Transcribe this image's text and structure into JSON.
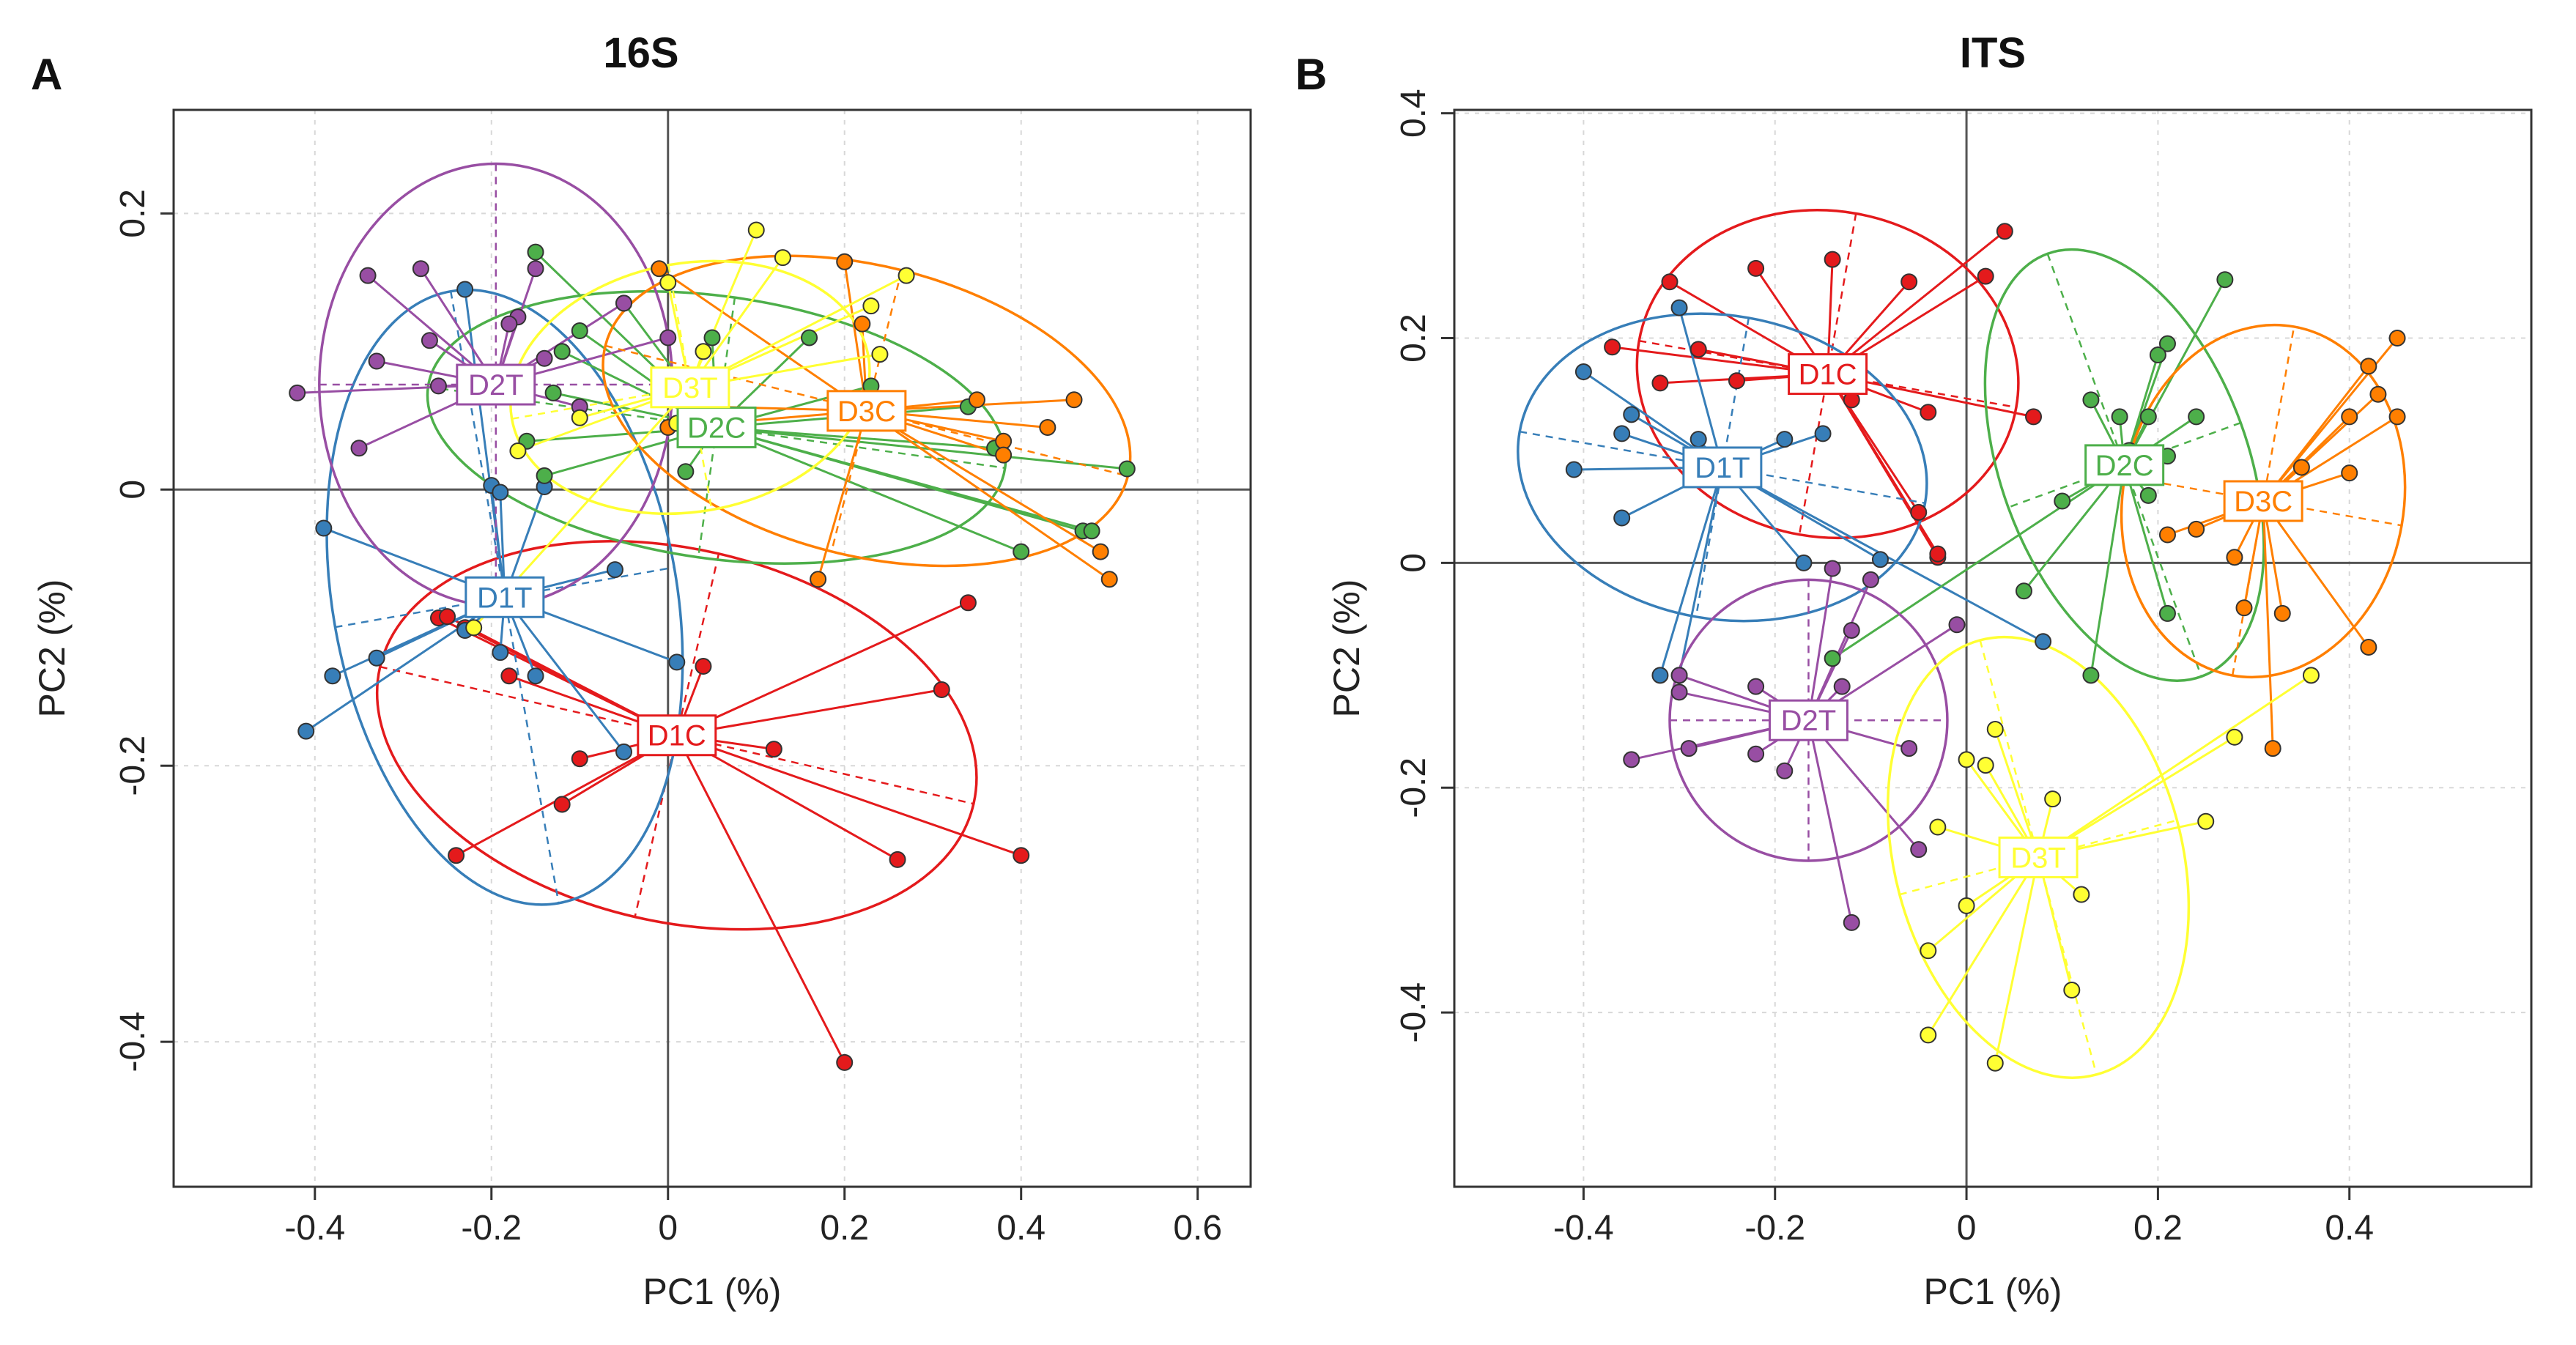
{
  "chart_data": [
    {
      "type": "scatter",
      "panel_label": "A",
      "title": "16S",
      "xlabel": "PC1 (%)",
      "ylabel": "PC2 (%)",
      "xlim": [
        -0.56,
        0.66
      ],
      "ylim": [
        -0.505,
        0.275
      ],
      "xticks": [
        -0.4,
        -0.2,
        0,
        0.2,
        0.4,
        0.6
      ],
      "xtick_labels": [
        "-0.4",
        "-0.2",
        "0",
        "0.2",
        "0.4",
        "0.6"
      ],
      "yticks": [
        -0.4,
        -0.2,
        0,
        0.2
      ],
      "ytick_labels": [
        "-0.4",
        "-0.2",
        "0",
        "0.2"
      ],
      "grid": true,
      "groups": [
        {
          "name": "D1C",
          "color": "#e41a1c",
          "centroid": [
            0.01,
            -0.178
          ],
          "ellipse": {
            "rx": 0.345,
            "ry": 0.135,
            "angle": -13
          },
          "points": [
            [
              -0.26,
              -0.093
            ],
            [
              -0.25,
              -0.092
            ],
            [
              -0.23,
              -0.1
            ],
            [
              -0.18,
              -0.135
            ],
            [
              -0.1,
              -0.195
            ],
            [
              -0.12,
              -0.228
            ],
            [
              -0.24,
              -0.265
            ],
            [
              0.04,
              -0.128
            ],
            [
              0.12,
              -0.188
            ],
            [
              0.2,
              -0.415
            ],
            [
              0.26,
              -0.268
            ],
            [
              0.31,
              -0.145
            ],
            [
              0.34,
              -0.082
            ],
            [
              0.4,
              -0.265
            ]
          ]
        },
        {
          "name": "D1T",
          "color": "#377eb8",
          "centroid": [
            -0.185,
            -0.078
          ],
          "ellipse": {
            "rx": 0.195,
            "ry": 0.225,
            "angle": 10
          },
          "points": [
            [
              -0.39,
              -0.028
            ],
            [
              -0.41,
              -0.175
            ],
            [
              -0.38,
              -0.135
            ],
            [
              -0.33,
              -0.122
            ],
            [
              -0.23,
              -0.102
            ],
            [
              -0.19,
              -0.118
            ],
            [
              -0.2,
              0.003
            ],
            [
              -0.19,
              -0.002
            ],
            [
              -0.15,
              -0.135
            ],
            [
              -0.14,
              0.002
            ],
            [
              -0.06,
              -0.058
            ],
            [
              -0.05,
              -0.19
            ],
            [
              0.01,
              -0.125
            ],
            [
              -0.23,
              0.145
            ]
          ]
        },
        {
          "name": "D2C",
          "color": "#4daf4a",
          "centroid": [
            0.055,
            0.045
          ],
          "ellipse": {
            "rx": 0.33,
            "ry": 0.095,
            "angle": -8
          },
          "points": [
            [
              -0.15,
              0.172
            ],
            [
              -0.12,
              0.1
            ],
            [
              -0.1,
              0.115
            ],
            [
              -0.13,
              0.07
            ],
            [
              -0.14,
              0.01
            ],
            [
              -0.16,
              0.035
            ],
            [
              -0.05,
              0.135
            ],
            [
              0.02,
              0.013
            ],
            [
              0.05,
              0.11
            ],
            [
              0.16,
              0.11
            ],
            [
              0.23,
              0.075
            ],
            [
              0.34,
              0.06
            ],
            [
              0.37,
              0.03
            ],
            [
              0.4,
              -0.045
            ],
            [
              0.47,
              -0.03
            ],
            [
              0.48,
              -0.03
            ],
            [
              0.52,
              0.015
            ]
          ]
        },
        {
          "name": "D2T",
          "color": "#984ea3",
          "centroid": [
            -0.195,
            0.076
          ],
          "ellipse": {
            "rx": 0.2,
            "ry": 0.16,
            "angle": 0
          },
          "points": [
            [
              -0.34,
              0.155
            ],
            [
              -0.28,
              0.16
            ],
            [
              -0.42,
              0.07
            ],
            [
              -0.33,
              0.093
            ],
            [
              -0.35,
              0.03
            ],
            [
              -0.26,
              0.075
            ],
            [
              -0.27,
              0.108
            ],
            [
              -0.17,
              0.125
            ],
            [
              -0.15,
              0.16
            ],
            [
              -0.14,
              0.095
            ],
            [
              -0.1,
              0.06
            ],
            [
              -0.05,
              0.135
            ],
            [
              0.0,
              0.11
            ],
            [
              -0.18,
              0.12
            ]
          ]
        },
        {
          "name": "D3C",
          "color": "#ff7f00",
          "centroid": [
            0.225,
            0.057
          ],
          "ellipse": {
            "rx": 0.305,
            "ry": 0.105,
            "angle": -14
          },
          "points": [
            [
              -0.01,
              0.16
            ],
            [
              0.2,
              0.165
            ],
            [
              0.22,
              0.12
            ],
            [
              0.26,
              0.06
            ],
            [
              0.35,
              0.065
            ],
            [
              0.38,
              0.035
            ],
            [
              0.38,
              0.025
            ],
            [
              0.43,
              0.045
            ],
            [
              0.46,
              0.065
            ],
            [
              0.49,
              -0.045
            ],
            [
              0.5,
              -0.065
            ],
            [
              0.17,
              -0.065
            ],
            [
              0.0,
              0.045
            ],
            [
              0.05,
              0.06
            ]
          ]
        },
        {
          "name": "D3T",
          "color": "#ffff33",
          "centroid": [
            0.025,
            0.074
          ],
          "ellipse": {
            "rx": 0.205,
            "ry": 0.09,
            "angle": 10
          },
          "points": [
            [
              0.1,
              0.188
            ],
            [
              0.13,
              0.168
            ],
            [
              0.27,
              0.155
            ],
            [
              0.23,
              0.133
            ],
            [
              0.24,
              0.098
            ],
            [
              0.04,
              0.1
            ],
            [
              0.02,
              0.082
            ],
            [
              -0.1,
              0.052
            ],
            [
              -0.17,
              0.028
            ],
            [
              0.03,
              0.05
            ],
            [
              0.01,
              0.048
            ],
            [
              0.0,
              0.15
            ],
            [
              -0.22,
              -0.1
            ]
          ]
        }
      ]
    },
    {
      "type": "scatter",
      "panel_label": "B",
      "title": "ITS",
      "xlabel": "PC1 (%)",
      "ylabel": "PC2 (%)",
      "xlim": [
        -0.535,
        0.59
      ],
      "ylim": [
        -0.555,
        0.403
      ],
      "xticks": [
        -0.4,
        -0.2,
        0,
        0.2,
        0.4
      ],
      "xtick_labels": [
        "-0.4",
        "-0.2",
        "0",
        "0.2",
        "0.4"
      ],
      "yticks": [
        -0.4,
        -0.2,
        0,
        0.2,
        0.4
      ],
      "ytick_labels": [
        "-0.4",
        "-0.2",
        "0",
        "0.2",
        "0.4"
      ],
      "grid": true,
      "groups": [
        {
          "name": "D1C",
          "color": "#e41a1c",
          "centroid": [
            -0.145,
            0.168
          ],
          "ellipse": {
            "rx": 0.2,
            "ry": 0.145,
            "angle": -10
          },
          "points": [
            [
              -0.31,
              0.25
            ],
            [
              -0.22,
              0.262
            ],
            [
              -0.14,
              0.27
            ],
            [
              -0.06,
              0.25
            ],
            [
              0.02,
              0.255
            ],
            [
              0.04,
              0.295
            ],
            [
              -0.37,
              0.192
            ],
            [
              -0.28,
              0.19
            ],
            [
              -0.24,
              0.162
            ],
            [
              -0.12,
              0.145
            ],
            [
              -0.04,
              0.134
            ],
            [
              -0.03,
              0.005
            ],
            [
              -0.03,
              0.008
            ],
            [
              -0.05,
              0.045
            ],
            [
              0.07,
              0.13
            ],
            [
              -0.32,
              0.16
            ]
          ]
        },
        {
          "name": "D1T",
          "color": "#377eb8",
          "centroid": [
            -0.255,
            0.085
          ],
          "ellipse": {
            "rx": 0.215,
            "ry": 0.135,
            "angle": -10
          },
          "points": [
            [
              -0.4,
              0.17
            ],
            [
              -0.35,
              0.132
            ],
            [
              -0.36,
              0.115
            ],
            [
              -0.28,
              0.11
            ],
            [
              -0.3,
              0.227
            ],
            [
              -0.41,
              0.083
            ],
            [
              -0.36,
              0.04
            ],
            [
              -0.3,
              -0.1
            ],
            [
              -0.19,
              0.11
            ],
            [
              -0.15,
              0.115
            ],
            [
              -0.09,
              0.003
            ],
            [
              -0.17,
              0.0
            ],
            [
              0.08,
              -0.07
            ],
            [
              -0.32,
              -0.1
            ]
          ]
        },
        {
          "name": "D2C",
          "color": "#4daf4a",
          "centroid": [
            0.165,
            0.087
          ],
          "ellipse": {
            "rx": 0.235,
            "ry": 0.11,
            "angle": -70
          },
          "points": [
            [
              0.27,
              0.252
            ],
            [
              0.21,
              0.195
            ],
            [
              0.2,
              0.185
            ],
            [
              0.13,
              0.145
            ],
            [
              0.16,
              0.13
            ],
            [
              0.19,
              0.13
            ],
            [
              0.24,
              0.13
            ],
            [
              0.17,
              0.1
            ],
            [
              0.21,
              0.095
            ],
            [
              0.1,
              0.055
            ],
            [
              0.19,
              0.06
            ],
            [
              0.21,
              -0.045
            ],
            [
              0.13,
              -0.1
            ],
            [
              0.06,
              -0.025
            ],
            [
              -0.14,
              -0.085
            ]
          ]
        },
        {
          "name": "D2T",
          "color": "#984ea3",
          "centroid": [
            -0.165,
            -0.14
          ],
          "ellipse": {
            "rx": 0.145,
            "ry": 0.125,
            "angle": 0
          },
          "points": [
            [
              -0.14,
              -0.005
            ],
            [
              -0.12,
              -0.06
            ],
            [
              -0.1,
              -0.015
            ],
            [
              -0.3,
              -0.1
            ],
            [
              -0.22,
              -0.11
            ],
            [
              -0.13,
              -0.11
            ],
            [
              -0.35,
              -0.175
            ],
            [
              -0.29,
              -0.165
            ],
            [
              -0.22,
              -0.17
            ],
            [
              -0.19,
              -0.185
            ],
            [
              -0.06,
              -0.165
            ],
            [
              -0.05,
              -0.255
            ],
            [
              -0.12,
              -0.32
            ],
            [
              -0.01,
              -0.055
            ],
            [
              -0.3,
              -0.115
            ]
          ]
        },
        {
          "name": "D3C",
          "color": "#ff7f00",
          "centroid": [
            0.31,
            0.055
          ],
          "ellipse": {
            "rx": 0.185,
            "ry": 0.125,
            "angle": 80
          },
          "points": [
            [
              0.45,
              0.2
            ],
            [
              0.42,
              0.175
            ],
            [
              0.43,
              0.15
            ],
            [
              0.4,
              0.13
            ],
            [
              0.45,
              0.13
            ],
            [
              0.35,
              0.085
            ],
            [
              0.4,
              0.08
            ],
            [
              0.3,
              0.063
            ],
            [
              0.24,
              0.03
            ],
            [
              0.28,
              0.005
            ],
            [
              0.33,
              -0.045
            ],
            [
              0.29,
              -0.04
            ],
            [
              0.32,
              -0.165
            ],
            [
              0.42,
              -0.075
            ],
            [
              0.21,
              0.025
            ]
          ]
        },
        {
          "name": "D3T",
          "color": "#ffff33",
          "centroid": [
            0.075,
            -0.262
          ],
          "ellipse": {
            "rx": 0.15,
            "ry": 0.2,
            "angle": 15
          },
          "points": [
            [
              0.03,
              -0.148
            ],
            [
              0.0,
              -0.175
            ],
            [
              0.02,
              -0.18
            ],
            [
              0.36,
              -0.1
            ],
            [
              0.28,
              -0.155
            ],
            [
              0.09,
              -0.21
            ],
            [
              0.25,
              -0.23
            ],
            [
              -0.03,
              -0.235
            ],
            [
              0.12,
              -0.295
            ],
            [
              0.0,
              -0.305
            ],
            [
              -0.04,
              -0.345
            ],
            [
              0.11,
              -0.38
            ],
            [
              -0.04,
              -0.42
            ],
            [
              0.03,
              -0.445
            ]
          ]
        }
      ]
    }
  ]
}
